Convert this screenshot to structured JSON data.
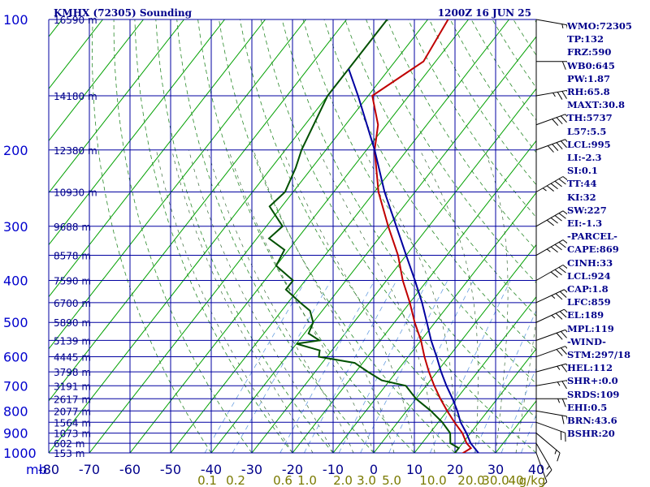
{
  "title": {
    "station": "KMHX (72305) Sounding",
    "time": "1200Z 16 JUN 25"
  },
  "chart_data": {
    "type": "line",
    "subtype": "skew-T log-P",
    "xlabel": "",
    "ylabel": "mb",
    "ylim": [
      1000,
      100
    ],
    "xlim": [
      -80,
      40
    ],
    "grid": true,
    "pressure_ticks": [
      100,
      200,
      300,
      400,
      500,
      600,
      700,
      800,
      900,
      1000
    ],
    "temperature_ticks": [
      -80,
      -70,
      -60,
      -50,
      -40,
      -30,
      -20,
      -10,
      0,
      10,
      20,
      30,
      40
    ],
    "temperature_tick_labels": [
      "-80",
      "-70",
      "-60",
      "-50",
      "-40",
      "-30",
      "-20",
      "-10",
      "0",
      "10",
      "20",
      "30",
      "40"
    ],
    "height_labels": [
      {
        "p": 100,
        "text": "16590 m"
      },
      {
        "p": 150,
        "text": "14180 m"
      },
      {
        "p": 200,
        "text": "12380 m"
      },
      {
        "p": 250,
        "text": "10930 m"
      },
      {
        "p": 300,
        "text": "9688 m"
      },
      {
        "p": 350,
        "text": "8578 m"
      },
      {
        "p": 400,
        "text": "7590 m"
      },
      {
        "p": 450,
        "text": "6700 m"
      },
      {
        "p": 500,
        "text": "5890 m"
      },
      {
        "p": 550,
        "text": "5139 m"
      },
      {
        "p": 600,
        "text": "4445 m"
      },
      {
        "p": 650,
        "text": "3798 m"
      },
      {
        "p": 700,
        "text": "3191 m"
      },
      {
        "p": 750,
        "text": "2617 m"
      },
      {
        "p": 800,
        "text": "2077 m"
      },
      {
        "p": 850,
        "text": "1564 m"
      },
      {
        "p": 900,
        "text": "1073 m"
      },
      {
        "p": 950,
        "text": "602 m"
      },
      {
        "p": 1000,
        "text": "153 m"
      }
    ],
    "mixing_ratio_labels": [
      "0.1",
      "0.2",
      "0.6",
      "1.0",
      "2.0",
      "3.0",
      "5.0",
      "10.0",
      "20.0",
      "30.0",
      "40",
      "g/kg"
    ],
    "series": [
      {
        "kind": "temperature",
        "color": "#c00000",
        "points": [
          [
            1017,
            23
          ],
          [
            1000,
            22
          ],
          [
            975,
            23
          ],
          [
            950,
            21
          ],
          [
            900,
            18
          ],
          [
            850,
            14
          ],
          [
            800,
            10
          ],
          [
            750,
            6
          ],
          [
            700,
            2
          ],
          [
            650,
            -2
          ],
          [
            600,
            -6
          ],
          [
            550,
            -10
          ],
          [
            500,
            -15
          ],
          [
            450,
            -20
          ],
          [
            400,
            -26
          ],
          [
            350,
            -32
          ],
          [
            300,
            -40
          ],
          [
            250,
            -49
          ],
          [
            200,
            -58
          ],
          [
            175,
            -62
          ],
          [
            150,
            -69
          ],
          [
            125,
            -63
          ],
          [
            100,
            -65
          ]
        ]
      },
      {
        "kind": "dewpoint",
        "color": "#005000",
        "points": [
          [
            1017,
            21
          ],
          [
            1000,
            20
          ],
          [
            975,
            20
          ],
          [
            950,
            17
          ],
          [
            900,
            15
          ],
          [
            850,
            11
          ],
          [
            800,
            6
          ],
          [
            750,
            0
          ],
          [
            700,
            -5
          ],
          [
            680,
            -12
          ],
          [
            650,
            -17
          ],
          [
            620,
            -22
          ],
          [
            600,
            -32
          ],
          [
            580,
            -33
          ],
          [
            560,
            -40
          ],
          [
            550,
            -35
          ],
          [
            530,
            -39
          ],
          [
            500,
            -40
          ],
          [
            470,
            -43
          ],
          [
            450,
            -47
          ],
          [
            420,
            -53
          ],
          [
            400,
            -53
          ],
          [
            370,
            -60
          ],
          [
            340,
            -61
          ],
          [
            320,
            -67
          ],
          [
            300,
            -66
          ],
          [
            270,
            -73
          ],
          [
            250,
            -72
          ],
          [
            220,
            -74
          ],
          [
            200,
            -76
          ],
          [
            150,
            -80
          ],
          [
            125,
            -80
          ],
          [
            100,
            -80
          ]
        ]
      },
      {
        "kind": "parcel",
        "color": "#0000a0",
        "points": [
          [
            1017,
            27
          ],
          [
            950,
            22
          ],
          [
            900,
            19
          ],
          [
            850,
            15.5
          ],
          [
            800,
            12.5
          ],
          [
            750,
            9
          ],
          [
            700,
            5
          ],
          [
            650,
            1
          ],
          [
            600,
            -3
          ],
          [
            550,
            -7.5
          ],
          [
            500,
            -12
          ],
          [
            450,
            -17
          ],
          [
            400,
            -23
          ],
          [
            350,
            -30
          ],
          [
            300,
            -38
          ],
          [
            250,
            -47.5
          ],
          [
            200,
            -58
          ],
          [
            150,
            -72.5
          ],
          [
            130,
            -80
          ]
        ]
      }
    ],
    "wind": [
      {
        "p": 1000,
        "dir": 200,
        "spd": 10
      },
      {
        "p": 950,
        "dir": 210,
        "spd": 15
      },
      {
        "p": 900,
        "dir": 230,
        "spd": 15
      },
      {
        "p": 850,
        "dir": 250,
        "spd": 20
      },
      {
        "p": 800,
        "dir": 260,
        "spd": 20
      },
      {
        "p": 750,
        "dir": 270,
        "spd": 25
      },
      {
        "p": 700,
        "dir": 280,
        "spd": 25
      },
      {
        "p": 650,
        "dir": 285,
        "spd": 25
      },
      {
        "p": 600,
        "dir": 290,
        "spd": 30
      },
      {
        "p": 550,
        "dir": 290,
        "spd": 30
      },
      {
        "p": 500,
        "dir": 295,
        "spd": 35
      },
      {
        "p": 450,
        "dir": 295,
        "spd": 35
      },
      {
        "p": 400,
        "dir": 300,
        "spd": 40
      },
      {
        "p": 350,
        "dir": 300,
        "spd": 45
      },
      {
        "p": 300,
        "dir": 300,
        "spd": 50
      },
      {
        "p": 250,
        "dir": 300,
        "spd": 55
      },
      {
        "p": 200,
        "dir": 290,
        "spd": 50
      },
      {
        "p": 175,
        "dir": 290,
        "spd": 40
      },
      {
        "p": 150,
        "dir": 280,
        "spd": 35
      },
      {
        "p": 125,
        "dir": 270,
        "spd": 20
      },
      {
        "p": 100,
        "dir": 260,
        "spd": 15
      }
    ]
  },
  "indices": [
    "WMO:72305",
    "TP:132",
    "FRZ:590",
    "WB0:645",
    "PW:1.87",
    "RH:65.8",
    "MAXT:30.8",
    "TH:5737",
    "L57:5.5",
    "LCL:995",
    "LI:-2.3",
    "SI:0.1",
    "TT:44",
    "KI:32",
    "SW:227",
    "EI:-1.3",
    "-PARCEL-",
    "CAPE:869",
    "CINH:33",
    "LCL:924",
    "CAP:1.8",
    "LFC:859",
    "EL:189",
    "MPL:119",
    "-WIND-",
    "STM:297/18",
    "HEL:112",
    "SHR+:0.0",
    "SRDS:109",
    "EHI:0.5",
    "BRN:43.6",
    "BSHR:20"
  ],
  "colors": {
    "grid": "#0000a0",
    "isotherm": "#00a000",
    "dry_adiabat": "#2a8a2a",
    "moist_adiabat": "#3a6a3a",
    "mixing_ratio": "#6aa0e0",
    "temperature": "#c00000",
    "dewpoint": "#005000",
    "parcel": "#0000a0",
    "text": "#00008b"
  }
}
